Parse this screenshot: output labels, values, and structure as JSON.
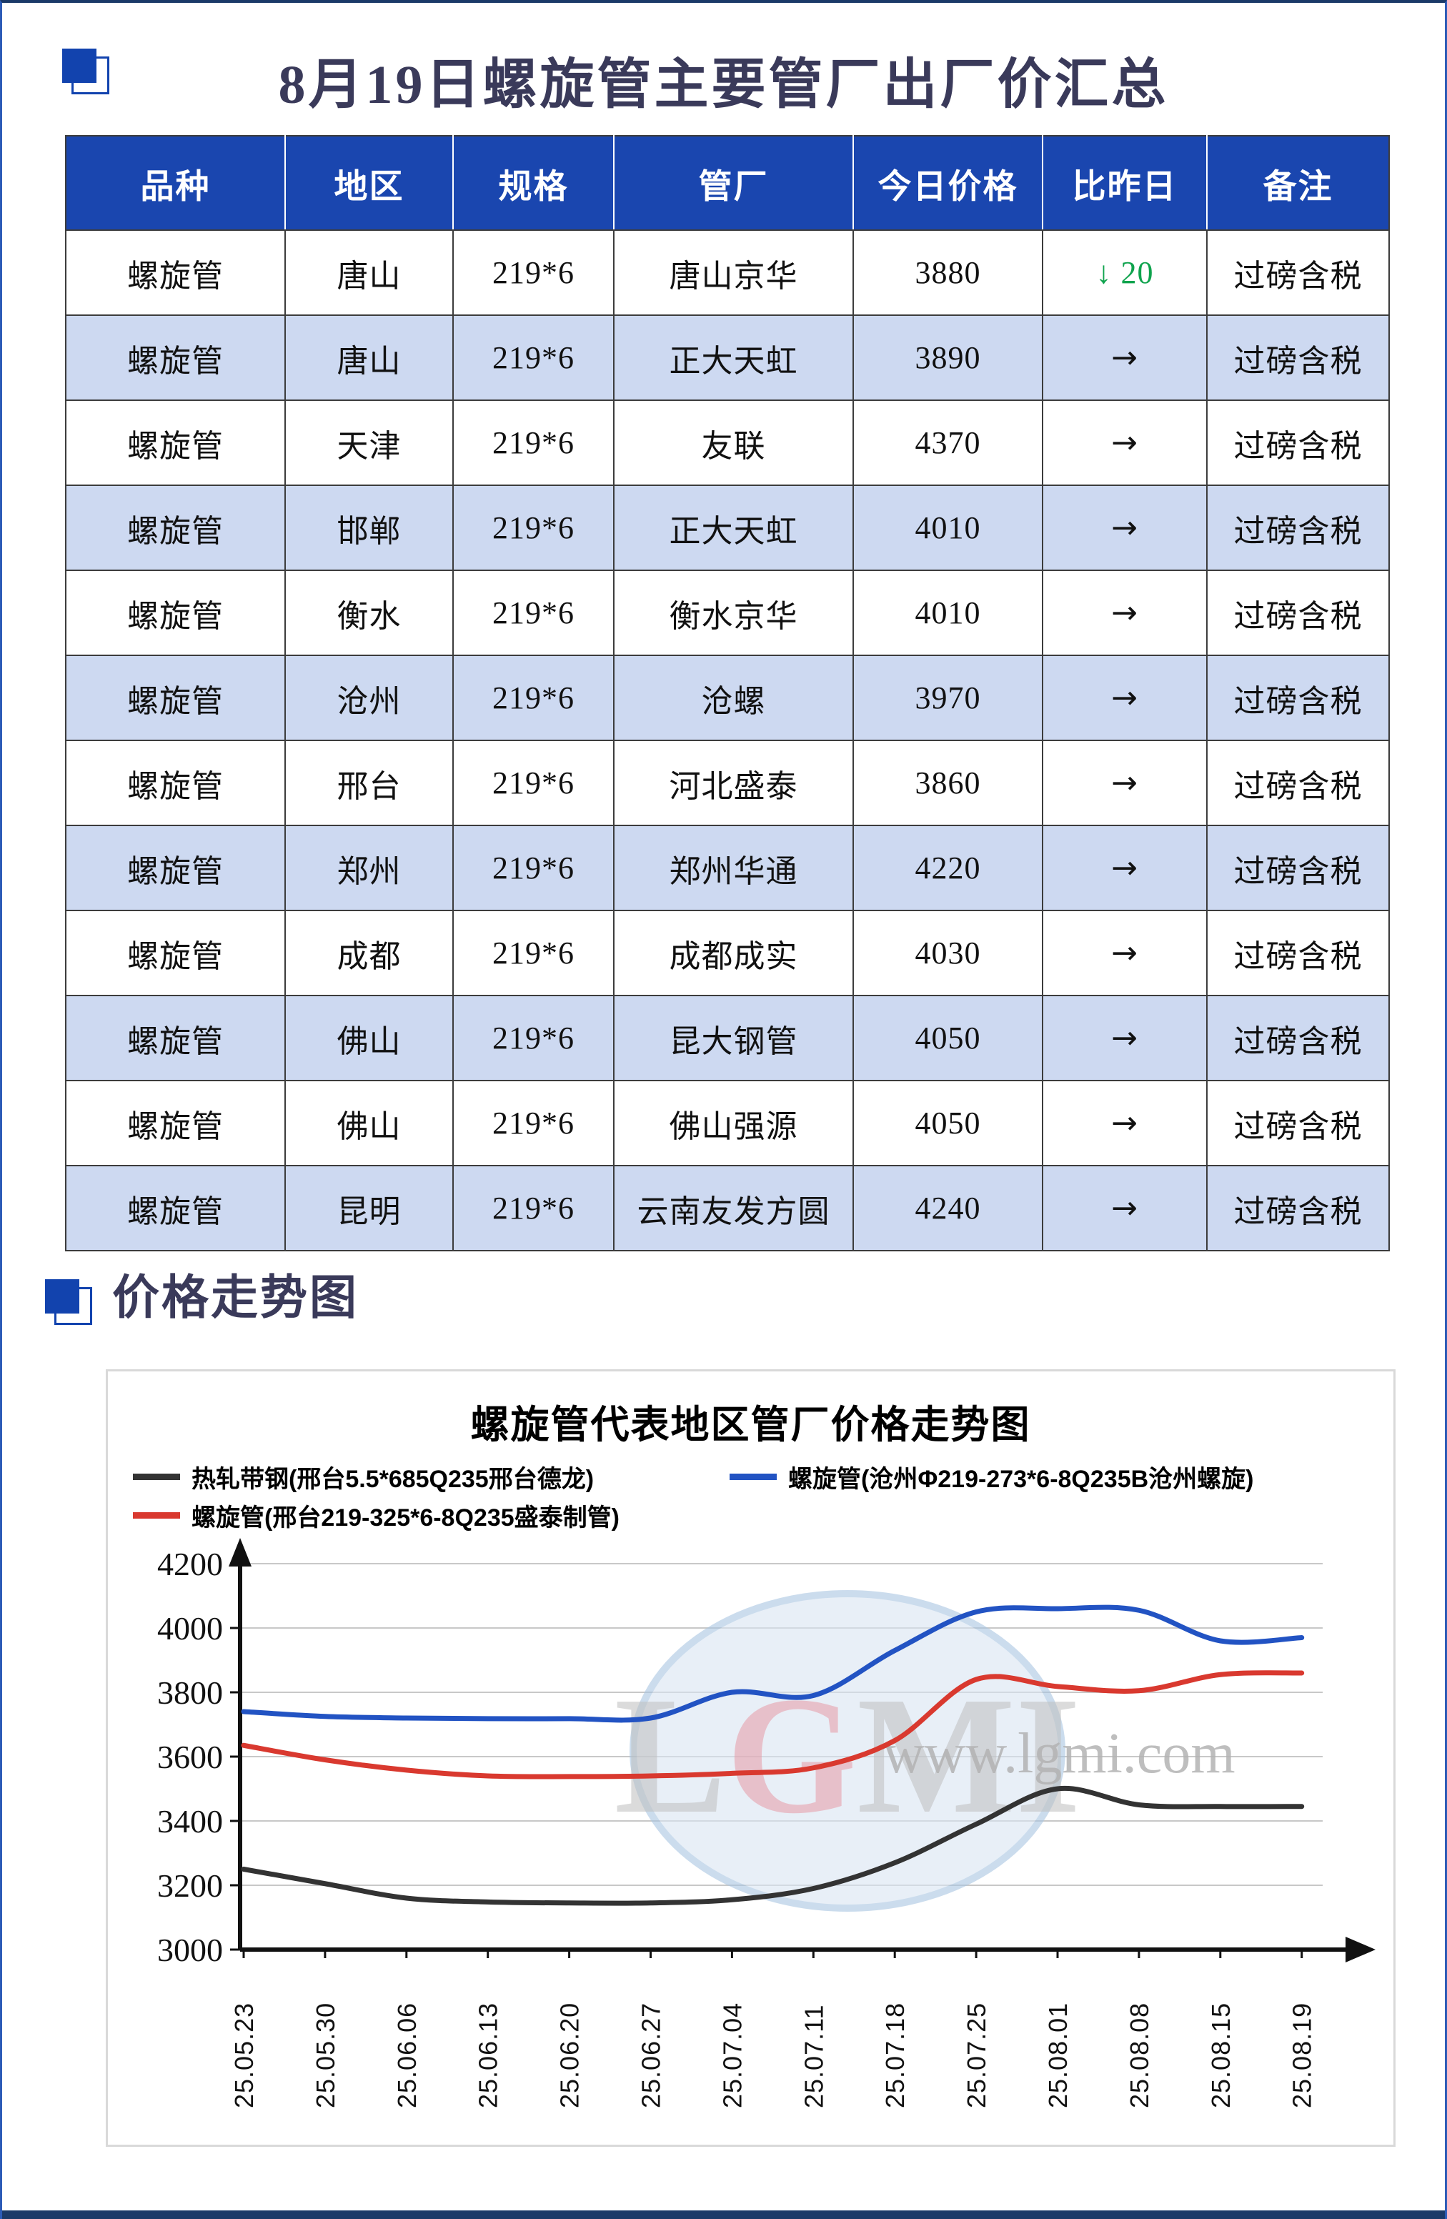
{
  "colors": {
    "header_bg": "#1a46af",
    "row_alt_bg": "#cdd9f1",
    "marker_blue": "#1243ae",
    "green": "#0fa34d",
    "frame_navy": "#1b3a68",
    "side_border": "#2d5cb7",
    "title_text": "#3a3a5a",
    "panel_border": "#d9d9d9",
    "grid": "#c8c8c8"
  },
  "header": {
    "title": "8月19日螺旋管主要管厂出厂价汇总"
  },
  "price_table": {
    "columns": [
      "品种",
      "地区",
      "规格",
      "管厂",
      "今日价格",
      "比昨日",
      "备注"
    ],
    "change_symbols": {
      "down": "↓",
      "flat": "→",
      "up": "↑"
    },
    "rows": [
      {
        "variety": "螺旋管",
        "region": "唐山",
        "spec": "219*6",
        "mill": "唐山京华",
        "price": "3880",
        "change": {
          "dir": "down",
          "amount": "20"
        },
        "note": "过磅含税"
      },
      {
        "variety": "螺旋管",
        "region": "唐山",
        "spec": "219*6",
        "mill": "正大天虹",
        "price": "3890",
        "change": {
          "dir": "flat",
          "amount": ""
        },
        "note": "过磅含税"
      },
      {
        "variety": "螺旋管",
        "region": "天津",
        "spec": "219*6",
        "mill": "友联",
        "price": "4370",
        "change": {
          "dir": "flat",
          "amount": ""
        },
        "note": "过磅含税"
      },
      {
        "variety": "螺旋管",
        "region": "邯郸",
        "spec": "219*6",
        "mill": "正大天虹",
        "price": "4010",
        "change": {
          "dir": "flat",
          "amount": ""
        },
        "note": "过磅含税"
      },
      {
        "variety": "螺旋管",
        "region": "衡水",
        "spec": "219*6",
        "mill": "衡水京华",
        "price": "4010",
        "change": {
          "dir": "flat",
          "amount": ""
        },
        "note": "过磅含税"
      },
      {
        "variety": "螺旋管",
        "region": "沧州",
        "spec": "219*6",
        "mill": "沧螺",
        "price": "3970",
        "change": {
          "dir": "flat",
          "amount": ""
        },
        "note": "过磅含税"
      },
      {
        "variety": "螺旋管",
        "region": "邢台",
        "spec": "219*6",
        "mill": "河北盛泰",
        "price": "3860",
        "change": {
          "dir": "flat",
          "amount": ""
        },
        "note": "过磅含税"
      },
      {
        "variety": "螺旋管",
        "region": "郑州",
        "spec": "219*6",
        "mill": "郑州华通",
        "price": "4220",
        "change": {
          "dir": "flat",
          "amount": ""
        },
        "note": "过磅含税"
      },
      {
        "variety": "螺旋管",
        "region": "成都",
        "spec": "219*6",
        "mill": "成都成实",
        "price": "4030",
        "change": {
          "dir": "flat",
          "amount": ""
        },
        "note": "过磅含税"
      },
      {
        "variety": "螺旋管",
        "region": "佛山",
        "spec": "219*6",
        "mill": "昆大钢管",
        "price": "4050",
        "change": {
          "dir": "flat",
          "amount": ""
        },
        "note": "过磅含税"
      },
      {
        "variety": "螺旋管",
        "region": "佛山",
        "spec": "219*6",
        "mill": "佛山强源",
        "price": "4050",
        "change": {
          "dir": "flat",
          "amount": ""
        },
        "note": "过磅含税"
      },
      {
        "variety": "螺旋管",
        "region": "昆明",
        "spec": "219*6",
        "mill": "云南友发方圆",
        "price": "4240",
        "change": {
          "dir": "flat",
          "amount": ""
        },
        "note": "过磅含税"
      }
    ]
  },
  "section2": {
    "title": "价格走势图"
  },
  "chart_data": {
    "type": "line",
    "title": "螺旋管代表地区管厂价格走势图",
    "x": [
      "25.05.23",
      "25.05.30",
      "25.06.06",
      "25.06.13",
      "25.06.20",
      "25.06.27",
      "25.07.04",
      "25.07.11",
      "25.07.18",
      "25.07.25",
      "25.08.01",
      "25.08.08",
      "25.08.15",
      "25.08.19"
    ],
    "ylim": [
      3000,
      4200
    ],
    "ytick_step": 200,
    "grid": true,
    "legend_position": "top",
    "series": [
      {
        "name": "热轧带钢(邢台5.5*685Q235邢台德龙)",
        "color": "#333333",
        "values": [
          3250,
          3205,
          3160,
          3148,
          3145,
          3145,
          3155,
          3190,
          3270,
          3390,
          3500,
          3450,
          3445,
          3445
        ]
      },
      {
        "name": "螺旋管(邢台219-325*6-8Q235盛泰制管)",
        "color": "#d9392f",
        "values": [
          3635,
          3590,
          3558,
          3540,
          3538,
          3540,
          3548,
          3565,
          3650,
          3840,
          3818,
          3805,
          3855,
          3860
        ]
      },
      {
        "name": "螺旋管(沧州Φ219-273*6-8Q235B沧州螺旋)",
        "color": "#2253c3",
        "values": [
          3740,
          3725,
          3720,
          3718,
          3718,
          3720,
          3800,
          3790,
          3930,
          4050,
          4060,
          4055,
          3960,
          3970
        ]
      }
    ],
    "legend_rows": [
      [
        0,
        2
      ],
      [
        1
      ]
    ],
    "watermark": {
      "logo": "LGMI",
      "url_text": "www.lgmi.com"
    }
  }
}
